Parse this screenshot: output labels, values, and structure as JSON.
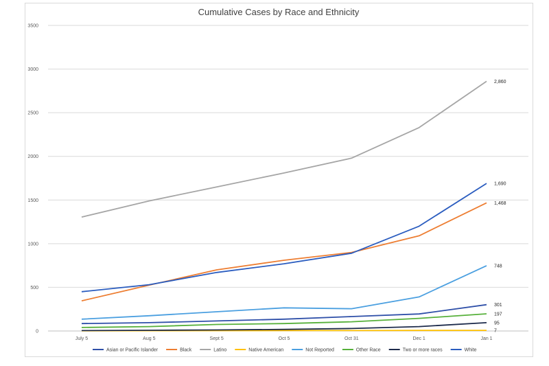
{
  "chart_data": {
    "type": "line",
    "title": "Cumulative Cases by Race and Ethnicity",
    "xlabel": "",
    "ylabel": "",
    "categories": [
      "July 5",
      "Aug 5",
      "Sept 5",
      "Oct 5",
      "Oct 31",
      "Dec 1",
      "Jan 1"
    ],
    "ylim": [
      0,
      3500
    ],
    "yticks": [
      "0",
      "500",
      "1000",
      "1500",
      "2000",
      "2500",
      "3000",
      "3500"
    ],
    "grid": true,
    "legend_position": "bottom",
    "series": [
      {
        "name": "Asian or Pacific Islander",
        "color": "#2e4fa8",
        "values": [
          85,
          95,
          115,
          135,
          165,
          195,
          301
        ],
        "end_label": "301"
      },
      {
        "name": "Black",
        "color": "#ed7d31",
        "values": [
          345,
          525,
          700,
          810,
          900,
          1090,
          1468
        ],
        "end_label": "1,468"
      },
      {
        "name": "Latino",
        "color": "#a5a5a5",
        "values": [
          1305,
          1490,
          1650,
          1810,
          1980,
          2330,
          2860
        ],
        "end_label": "2,860"
      },
      {
        "name": "Native American",
        "color": "#ffc000",
        "values": [
          2,
          3,
          4,
          5,
          5,
          6,
          7
        ],
        "end_label": "7"
      },
      {
        "name": "Not Reported",
        "color": "#4a9fe0",
        "values": [
          135,
          175,
          220,
          265,
          255,
          390,
          748
        ],
        "end_label": "748"
      },
      {
        "name": "Other Race",
        "color": "#56b03a",
        "values": [
          40,
          50,
          75,
          85,
          105,
          145,
          197
        ],
        "end_label": "197"
      },
      {
        "name": "Two or more races",
        "color": "#1c2a4a",
        "values": [
          5,
          8,
          12,
          18,
          28,
          50,
          95
        ],
        "end_label": "95"
      },
      {
        "name": "White",
        "color": "#2a5cbf",
        "values": [
          450,
          530,
          670,
          770,
          890,
          1200,
          1690
        ],
        "end_label": "1,690"
      }
    ]
  }
}
